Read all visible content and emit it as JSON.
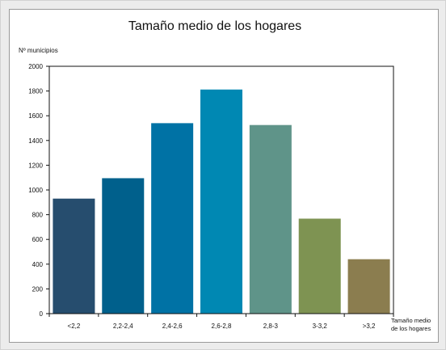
{
  "chart_data": {
    "type": "bar",
    "title": "Tamaño medio de los hogares",
    "ylabel": "Nº municipios",
    "xlabel_lines": [
      "Tamaño medio",
      "de los hogares"
    ],
    "categories": [
      "<2,2",
      "2,2-2,4",
      "2,4-2,6",
      "2,6-2,8",
      "2,8-3",
      "3-3,2",
      ">3,2"
    ],
    "values": [
      930,
      1095,
      1540,
      1812,
      1525,
      768,
      440
    ],
    "ylim": [
      0,
      2000
    ],
    "yticks": [
      "0",
      "200",
      "400",
      "600",
      "800",
      "1000",
      "1200",
      "1400",
      "1600",
      "1800",
      "2000"
    ],
    "grid": false,
    "legend": "none",
    "colors": [
      "#264d6e",
      "#00608c",
      "#0072a5",
      "#0088b3",
      "#5f9489",
      "#7e9352",
      "#8b7d4f"
    ]
  }
}
